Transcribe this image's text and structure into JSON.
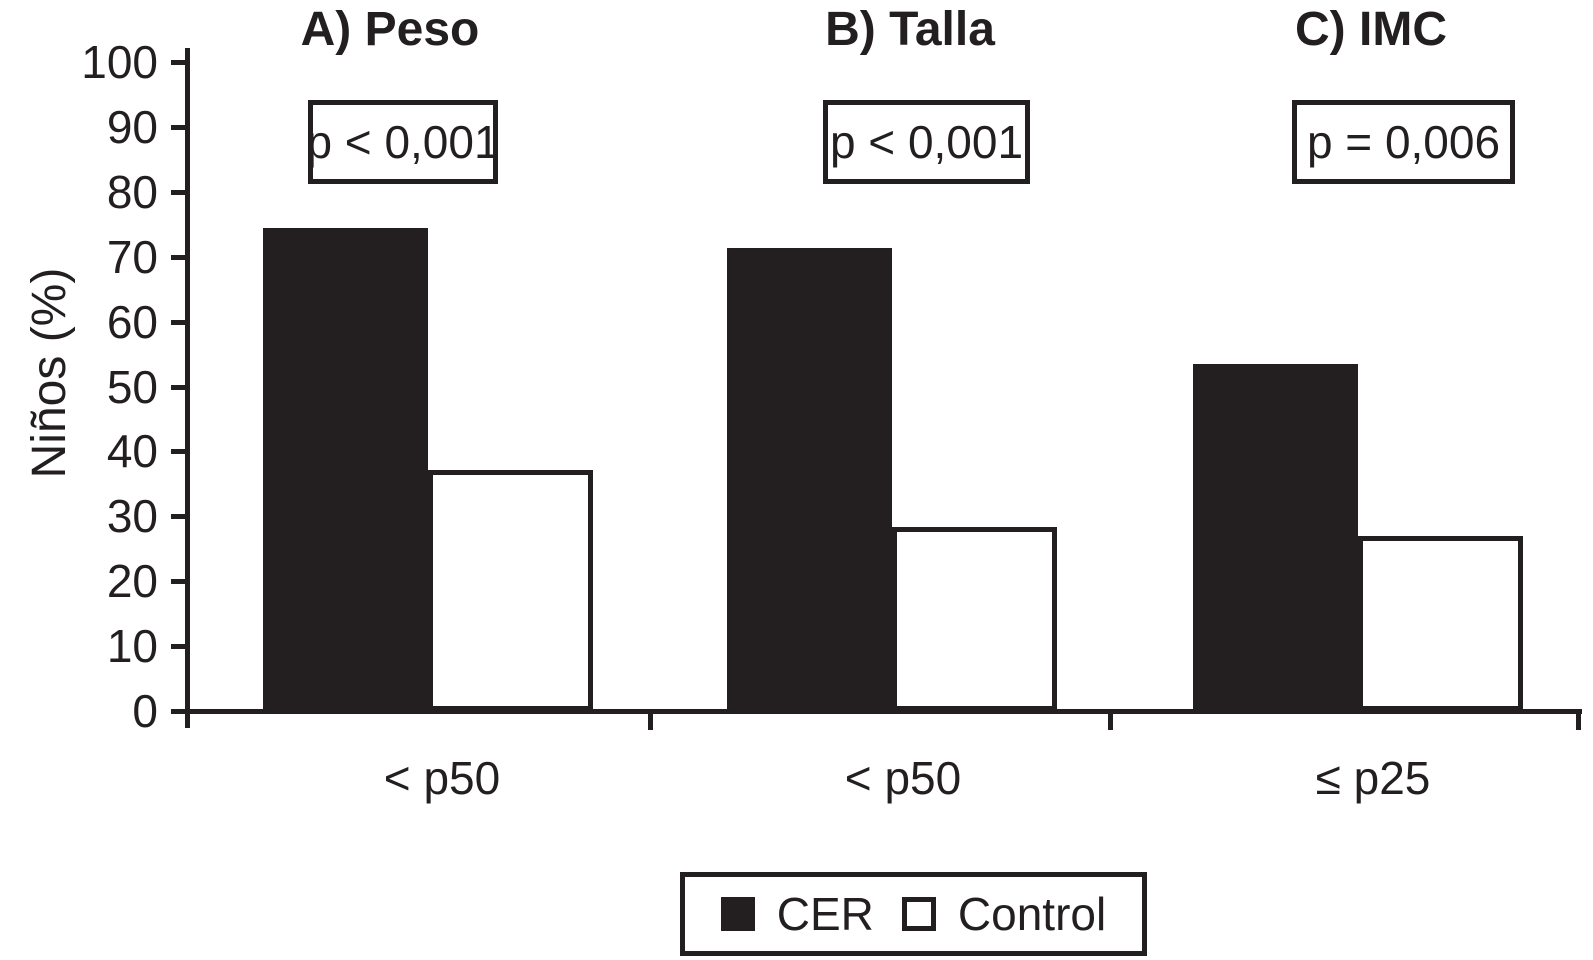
{
  "chart_data": {
    "type": "bar",
    "title": "",
    "ylabel": "Niños (%)",
    "ylim": [
      0,
      100
    ],
    "ytick_step": 10,
    "grid": false,
    "legend_position": "bottom",
    "categories": [
      "< p50",
      "< p50",
      "≤ p25"
    ],
    "panels": [
      {
        "label": "A) Peso",
        "p_value_label": "p < 0,001",
        "x_tick_label": "< p50"
      },
      {
        "label": "B) Talla",
        "p_value_label": "p < 0,001",
        "x_tick_label": "< p50"
      },
      {
        "label": "C) IMC",
        "p_value_label": "p = 0,006",
        "x_tick_label": "≤ p25"
      }
    ],
    "series": [
      {
        "name": "CER",
        "style": "filled",
        "values": [
          74.4,
          71.4,
          53.5
        ]
      },
      {
        "name": "Control",
        "style": "open",
        "values": [
          37.2,
          28.3,
          26.9
        ]
      }
    ]
  },
  "legend": {
    "items": [
      {
        "label": "CER",
        "swatch": "filled-square-icon"
      },
      {
        "label": "Control",
        "swatch": "open-square-icon"
      }
    ]
  },
  "colors": {
    "ink": "#231f20",
    "background": "#ffffff"
  }
}
